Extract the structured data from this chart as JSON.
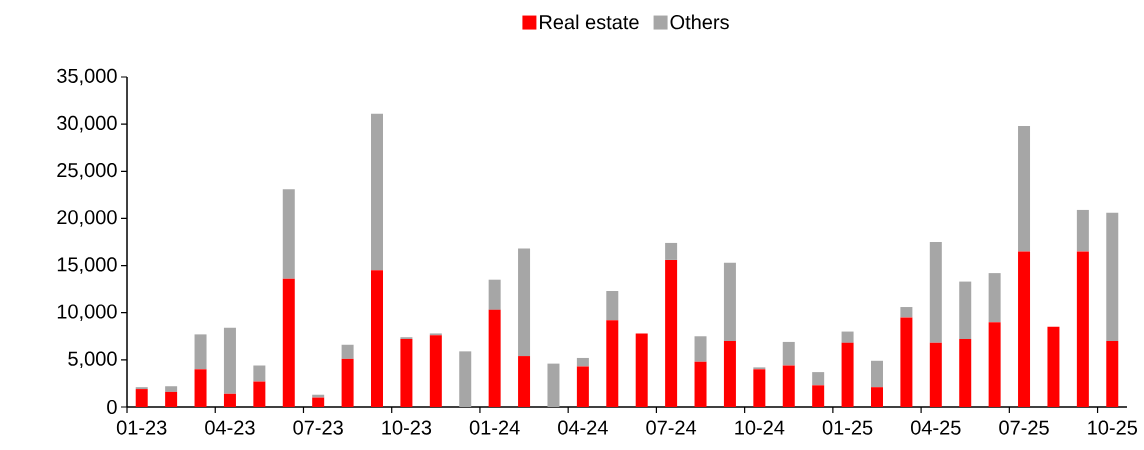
{
  "chart_data": {
    "type": "bar",
    "stacked": true,
    "legend": "top",
    "categories": [
      "01-23",
      null,
      null,
      "04-23",
      null,
      null,
      "07-23",
      null,
      null,
      "10-23",
      null,
      null,
      "01-24",
      null,
      null,
      "04-24",
      null,
      null,
      "07-24",
      null,
      null,
      "10-24",
      null,
      null,
      "01-25",
      null,
      null,
      "04-25",
      null,
      null,
      "07-25",
      null,
      null,
      "10-25"
    ],
    "series": [
      {
        "name": "Real estate",
        "color": "#ff0000",
        "values": [
          1900,
          1600,
          4000,
          1400,
          2700,
          13600,
          1000,
          5100,
          14500,
          7200,
          7600,
          0,
          10300,
          5400,
          0,
          4300,
          9200,
          7800,
          15600,
          4800,
          7000,
          4000,
          4400,
          2300,
          6800,
          2100,
          9500,
          6800,
          7200,
          9000,
          16500,
          8500,
          16500,
          7000
        ]
      },
      {
        "name": "Others",
        "color": "#a6a6a6",
        "values": [
          200,
          600,
          3700,
          7000,
          1700,
          9500,
          300,
          1500,
          16600,
          200,
          200,
          5900,
          3200,
          11400,
          4600,
          900,
          3100,
          0,
          1800,
          2700,
          8300,
          200,
          2500,
          1400,
          1200,
          2800,
          1100,
          10700,
          6100,
          5200,
          13300,
          0,
          4400,
          13600
        ]
      }
    ],
    "ylim": [
      0,
      35000
    ],
    "yticks": [
      0,
      {
        "value": 5000,
        "label": "5,000"
      },
      {
        "value": 10000,
        "label": "10,000"
      },
      {
        "value": 15000,
        "label": "15,000"
      },
      {
        "value": 20000,
        "label": "20,000"
      },
      {
        "value": 25000,
        "label": "25,000"
      },
      {
        "value": 30000,
        "label": "30,000"
      },
      {
        "value": 35000,
        "label": "35,000"
      }
    ]
  }
}
